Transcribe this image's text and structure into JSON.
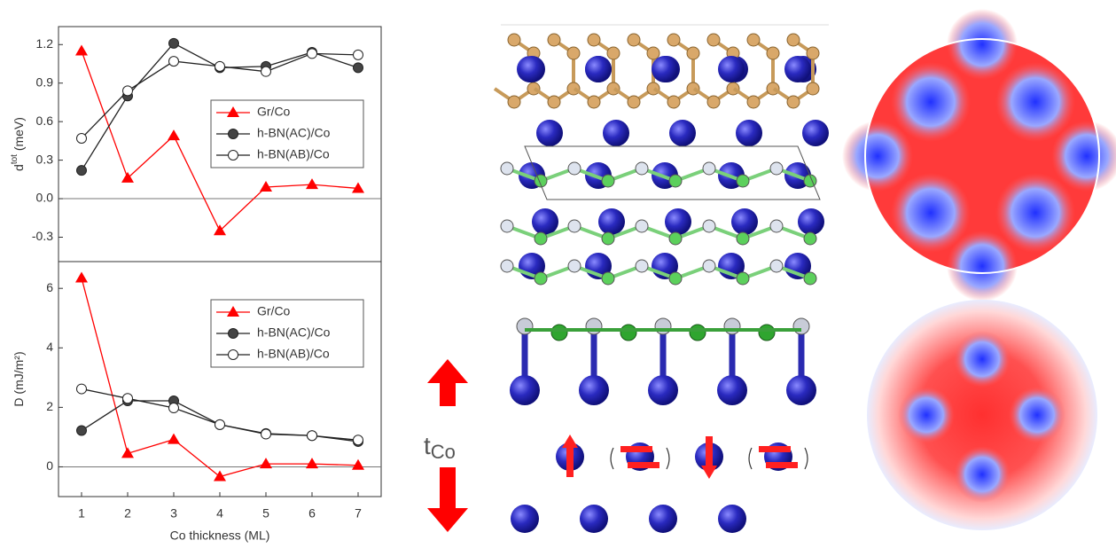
{
  "chart_data": [
    {
      "type": "line",
      "ylabel": {
        "main": "d",
        "sup": "tot",
        "unit": "(meV)"
      },
      "x": [
        1,
        2,
        3,
        4,
        5,
        6,
        7
      ],
      "xlim": [
        0.5,
        7.5
      ],
      "ylim": [
        -0.49,
        1.34
      ],
      "yticks": [
        -0.3,
        {
          "value": 0,
          "label": "0.0"
        },
        0.3,
        0.6,
        0.9,
        1.2
      ],
      "legend": "upper right",
      "series": [
        {
          "name": "Gr/Co",
          "color": "#ff0000",
          "marker": "triangle",
          "values": [
            1.15,
            0.16,
            0.49,
            -0.25,
            0.09,
            0.11,
            0.08
          ]
        },
        {
          "name": "h-BN(AC)/Co",
          "color": "#222222",
          "marker": "filled-circle",
          "values": [
            0.22,
            0.8,
            1.21,
            1.02,
            1.03,
            1.14,
            1.02
          ]
        },
        {
          "name": "h-BN(AB)/Co",
          "color": "#222222",
          "marker": "open-circle",
          "values": [
            0.47,
            0.84,
            1.07,
            1.03,
            0.99,
            1.13,
            1.12
          ]
        }
      ]
    },
    {
      "type": "line",
      "ylabel": {
        "main": "D (mJ/m²)"
      },
      "xlabel": "Co thickness (ML)",
      "x": [
        1,
        2,
        3,
        4,
        5,
        6,
        7
      ],
      "xlim": [
        0.5,
        7.5
      ],
      "xticks": [
        1,
        2,
        3,
        4,
        5,
        6,
        7
      ],
      "ylim": [
        -1,
        6.9
      ],
      "yticks": [
        0,
        2,
        4,
        6
      ],
      "legend": "upper right",
      "series": [
        {
          "name": "Gr/Co",
          "color": "#ff0000",
          "marker": "triangle",
          "values": [
            6.35,
            0.45,
            0.92,
            -0.33,
            0.1,
            0.1,
            0.05
          ]
        },
        {
          "name": "h-BN(AC)/Co",
          "color": "#222222",
          "marker": "filled-circle",
          "values": [
            1.22,
            2.22,
            2.22,
            1.42,
            1.12,
            1.05,
            0.85
          ]
        },
        {
          "name": "h-BN(AB)/Co",
          "color": "#222222",
          "marker": "open-circle",
          "values": [
            2.62,
            2.3,
            1.98,
            1.42,
            1.1,
            1.05,
            0.9
          ]
        }
      ]
    }
  ],
  "figure": {
    "thickness_label": {
      "main": "t",
      "sub": "Co"
    }
  }
}
